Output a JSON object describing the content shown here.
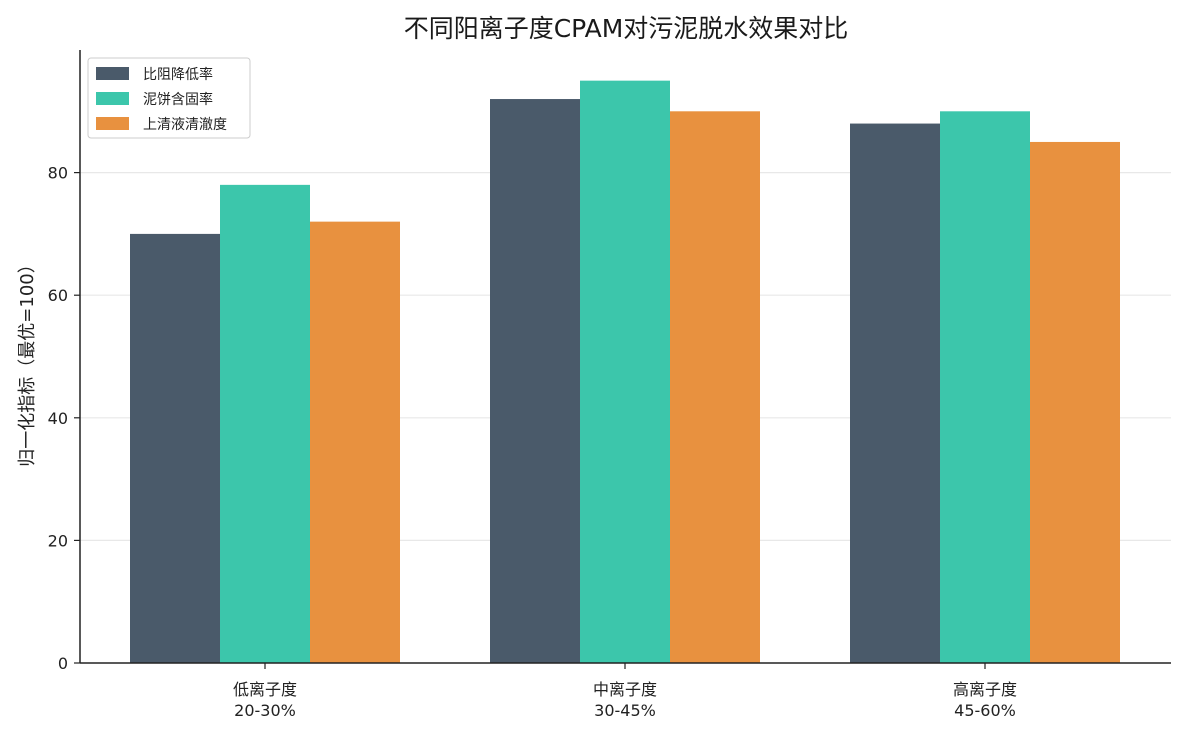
{
  "chart_data": {
    "type": "bar",
    "title": "不同阳离子度CPAM对污泥脱水效果对比",
    "xlabel": "",
    "ylabel": "归一化指标（最优=100）",
    "categories": [
      {
        "line1": "低离子度",
        "line2": "20-30%"
      },
      {
        "line1": "中离子度",
        "line2": "30-45%"
      },
      {
        "line1": "高离子度",
        "line2": "45-60%"
      }
    ],
    "series": [
      {
        "name": "比阻降低率",
        "color": "#4a5a6a",
        "values": [
          70,
          92,
          88
        ]
      },
      {
        "name": "泥饼含固率",
        "color": "#3cc6ab",
        "values": [
          78,
          95,
          90
        ]
      },
      {
        "name": "上清液清澈度",
        "color": "#e8913f",
        "values": [
          72,
          90,
          85
        ]
      }
    ],
    "ylim": [
      0,
      100
    ],
    "yticks": [
      0,
      20,
      40,
      60,
      80
    ],
    "grid": true,
    "legend_position": "top-left"
  }
}
